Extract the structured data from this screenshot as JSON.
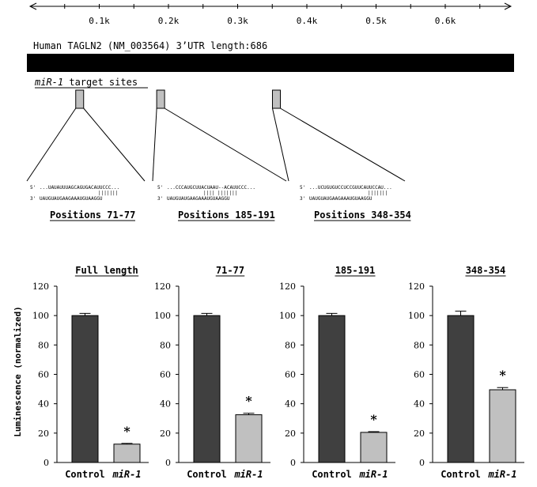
{
  "ruler": {
    "ticks": [
      "0.1k",
      "0.2k",
      "0.3k",
      "0.4k",
      "0.5k",
      "0.6k"
    ]
  },
  "gene_title": "Human TAGLN2 (NM_003564) 3’UTR length:686",
  "sites_heading_italic": "miR-1",
  "sites_heading_rest": " target sites",
  "sites": [
    {
      "position": 71,
      "label": "Positions 71-77",
      "seq_top": "...UAUAUUUAGCAGUGACAUUCCC...",
      "seq_pairs": "|||||||",
      "seq_bottom": "UAUGUAUGAAGAAAUGUAAGGU"
    },
    {
      "position": 185,
      "label": "Positions 185-191",
      "seq_top": "...CCCAUGCUUACUAAU--ACAUUCCC...",
      "seq_pairs": "||||   |||||||",
      "seq_bottom": "UAUGUAUGAAGAAAUGUAAGGU"
    },
    {
      "position": 348,
      "label": "Positions 348-354",
      "seq_top": "...UCUGUGUCCUCCGUUCAUUCCAU...",
      "seq_pairs": "|||||||",
      "seq_bottom": "UAUGUAUGAAGAAAUGUAAGGU"
    }
  ],
  "strand_5": "5'",
  "strand_3": "3'",
  "chart_data": {
    "type": "bar",
    "ylabel": "Luminescence (normalized)",
    "ylim": [
      0,
      120
    ],
    "yticks": [
      "0",
      "20",
      "40",
      "60",
      "80",
      "100",
      "120"
    ],
    "categories_control": "Control",
    "categories_mir": "miR-1",
    "panels": [
      {
        "title": "Full length",
        "values": [
          100,
          12.5
        ],
        "errors": [
          1.5,
          0.5
        ],
        "significant": "*"
      },
      {
        "title": "71-77",
        "values": [
          100,
          32.5
        ],
        "errors": [
          1.5,
          1.0
        ],
        "significant": "*"
      },
      {
        "title": "185-191",
        "values": [
          100,
          20.5
        ],
        "errors": [
          1.5,
          0.5
        ],
        "significant": "*"
      },
      {
        "title": "348-354",
        "values": [
          100,
          49.5
        ],
        "errors": [
          3.0,
          1.5
        ],
        "significant": "*"
      }
    ],
    "colors": {
      "control": "#404040",
      "mir": "#c0c0c0"
    }
  }
}
